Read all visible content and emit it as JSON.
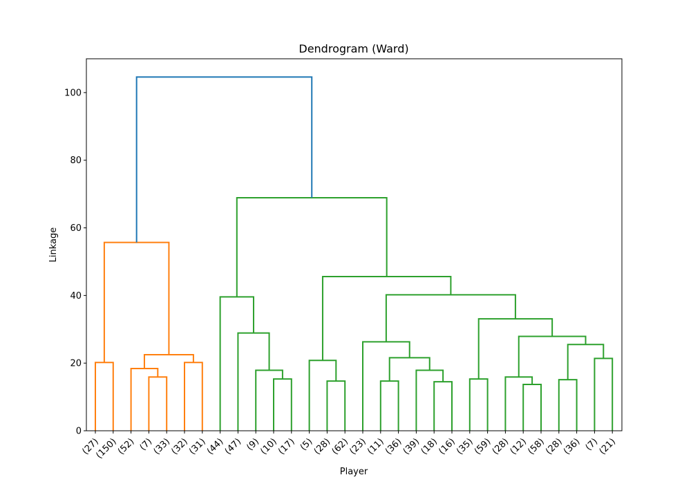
{
  "chart_data": {
    "type": "dendrogram",
    "title": "Dendrogram (Ward)",
    "xlabel": "Player",
    "ylabel": "Linkage",
    "ylim": [
      0,
      110
    ],
    "yticks": [
      0,
      20,
      40,
      60,
      80,
      100
    ],
    "grid": false,
    "colors": {
      "cluster_1": "#ff7f0e",
      "cluster_2": "#2ca02c",
      "above_threshold": "#1f77b4"
    },
    "leaves": [
      "(27)",
      "(150)",
      "(52)",
      "(7)",
      "(33)",
      "(32)",
      "(31)",
      "(44)",
      "(47)",
      "(9)",
      "(10)",
      "(17)",
      "(5)",
      "(28)",
      "(62)",
      "(23)",
      "(11)",
      "(36)",
      "(39)",
      "(18)",
      "(16)",
      "(35)",
      "(59)",
      "(28)",
      "(12)",
      "(58)",
      "(28)",
      "(36)",
      "(7)",
      "(21)"
    ],
    "merges": [
      {
        "id": "a1",
        "left": "L0",
        "right": "L1",
        "height": 20.2,
        "color": "cluster_1"
      },
      {
        "id": "a2",
        "left": "L3",
        "right": "L4",
        "height": 15.9,
        "color": "cluster_1"
      },
      {
        "id": "a3",
        "left": "L2",
        "right": "a2",
        "height": 18.4,
        "color": "cluster_1"
      },
      {
        "id": "a4",
        "left": "L5",
        "right": "L6",
        "height": 20.2,
        "color": "cluster_1"
      },
      {
        "id": "a5",
        "left": "a3",
        "right": "a4",
        "height": 22.5,
        "color": "cluster_1"
      },
      {
        "id": "a6",
        "left": "a1",
        "right": "a5",
        "height": 55.7,
        "color": "cluster_1"
      },
      {
        "id": "b1",
        "left": "L10",
        "right": "L11",
        "height": 15.3,
        "color": "cluster_2"
      },
      {
        "id": "b2",
        "left": "L9",
        "right": "b1",
        "height": 17.9,
        "color": "cluster_2"
      },
      {
        "id": "b3",
        "left": "L8",
        "right": "b2",
        "height": 28.9,
        "color": "cluster_2"
      },
      {
        "id": "b4",
        "left": "L7",
        "right": "b3",
        "height": 39.6,
        "color": "cluster_2"
      },
      {
        "id": "b5",
        "left": "L13",
        "right": "L14",
        "height": 14.7,
        "color": "cluster_2"
      },
      {
        "id": "b6",
        "left": "L12",
        "right": "b5",
        "height": 20.8,
        "color": "cluster_2"
      },
      {
        "id": "b7",
        "left": "L16",
        "right": "L17",
        "height": 14.7,
        "color": "cluster_2"
      },
      {
        "id": "b8",
        "left": "L19",
        "right": "L20",
        "height": 14.5,
        "color": "cluster_2"
      },
      {
        "id": "b9",
        "left": "L18",
        "right": "b8",
        "height": 17.9,
        "color": "cluster_2"
      },
      {
        "id": "b10",
        "left": "b7",
        "right": "b9",
        "height": 21.6,
        "color": "cluster_2"
      },
      {
        "id": "b11",
        "left": "L15",
        "right": "b10",
        "height": 26.3,
        "color": "cluster_2"
      },
      {
        "id": "b12",
        "left": "L21",
        "right": "L22",
        "height": 15.3,
        "color": "cluster_2"
      },
      {
        "id": "b13",
        "left": "L24",
        "right": "L25",
        "height": 13.7,
        "color": "cluster_2"
      },
      {
        "id": "b14",
        "left": "L23",
        "right": "b13",
        "height": 15.9,
        "color": "cluster_2"
      },
      {
        "id": "b15",
        "left": "L26",
        "right": "L27",
        "height": 15.1,
        "color": "cluster_2"
      },
      {
        "id": "b16",
        "left": "L28",
        "right": "L29",
        "height": 21.4,
        "color": "cluster_2"
      },
      {
        "id": "b17",
        "left": "b15",
        "right": "b16",
        "height": 25.5,
        "color": "cluster_2"
      },
      {
        "id": "b18",
        "left": "b14",
        "right": "b17",
        "height": 27.9,
        "color": "cluster_2"
      },
      {
        "id": "b19",
        "left": "b12",
        "right": "b18",
        "height": 33.1,
        "color": "cluster_2"
      },
      {
        "id": "b20",
        "left": "b11",
        "right": "b19",
        "height": 40.2,
        "color": "cluster_2"
      },
      {
        "id": "b21",
        "left": "b6",
        "right": "b20",
        "height": 45.6,
        "color": "cluster_2"
      },
      {
        "id": "b22",
        "left": "b4",
        "right": "b21",
        "height": 68.9,
        "color": "cluster_2"
      },
      {
        "id": "root",
        "left": "a6",
        "right": "b22",
        "height": 104.6,
        "color": "above_threshold"
      }
    ]
  }
}
